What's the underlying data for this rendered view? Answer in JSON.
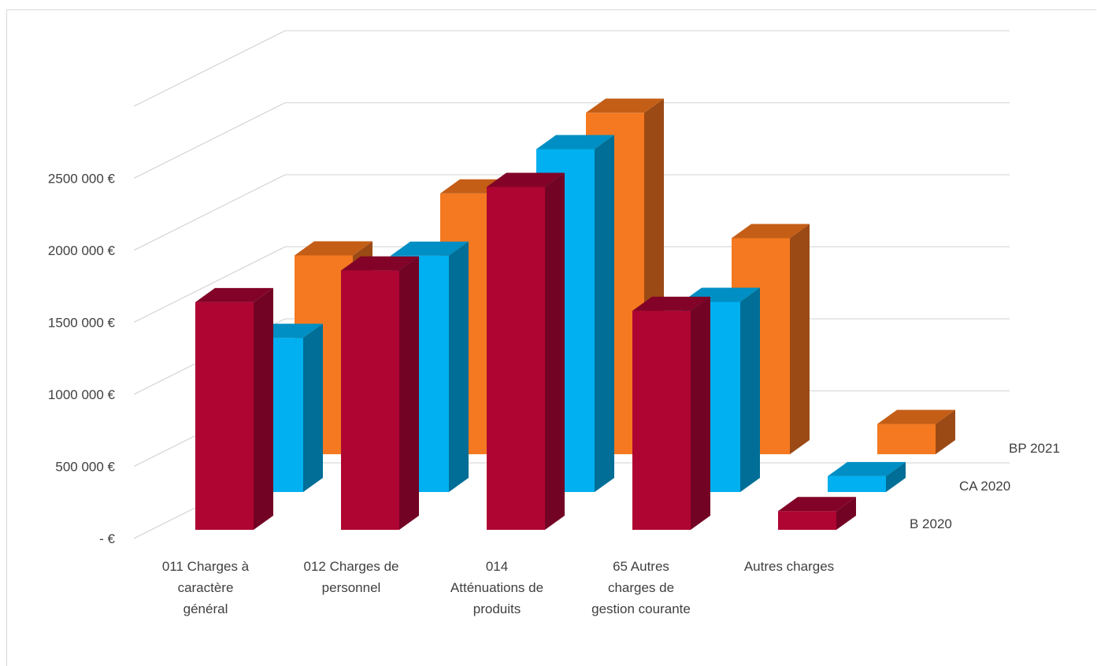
{
  "chart_data": {
    "type": "bar",
    "categories": [
      [
        "011 Charges à",
        "caractère",
        "général"
      ],
      [
        "012 Charges de",
        "personnel"
      ],
      [
        "014",
        "Atténuations de",
        "produits"
      ],
      [
        "65 Autres",
        "charges de",
        "gestion courante"
      ],
      [
        "Autres charges"
      ]
    ],
    "y_tick_labels": [
      "-  €",
      "500 000 €",
      "1000 000 €",
      "1500 000 €",
      "2000 000 €",
      "2500 000 €"
    ],
    "y_ticks": [
      0,
      500000,
      1000000,
      1500000,
      2000000,
      2500000
    ],
    "ylim": [
      0,
      3000000
    ],
    "series": [
      {
        "name": "B 2020",
        "values": [
          1580000,
          1800000,
          2380000,
          1520000,
          130000
        ],
        "color": "#af0532",
        "color_side": "#730324",
        "color_top": "#820327"
      },
      {
        "name": "CA 2020",
        "values": [
          1070000,
          1640000,
          2380000,
          1320000,
          110000
        ],
        "color": "#00b0f0",
        "color_side": "#006e96",
        "color_top": "#008fc4"
      },
      {
        "name": "BP 2021",
        "values": [
          1380000,
          1810000,
          2370000,
          1500000,
          210000
        ],
        "color": "#f47920",
        "color_side": "#9c4a15",
        "color_top": "#c45e17"
      }
    ],
    "legend": "right, stacked by depth",
    "grid": true,
    "style": "3d-clustered-by-depth"
  }
}
